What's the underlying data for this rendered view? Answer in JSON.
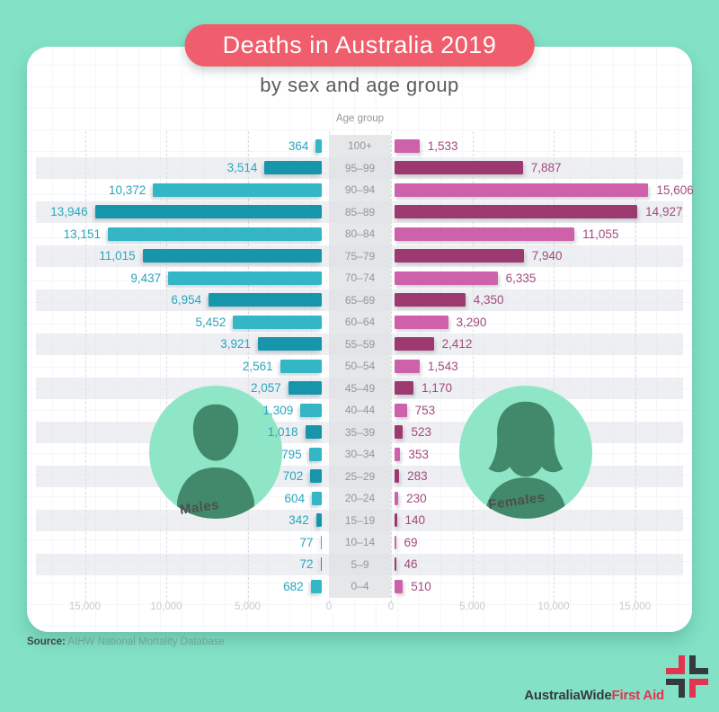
{
  "theme": {
    "mint": "#83E1C6",
    "banner": "#F05D6C",
    "subtitle_text": "#5B5B5B",
    "male_light": "#33B6C5",
    "male_dark": "#1795AA",
    "female_light": "#CD62AA",
    "female_dark": "#9C3A70",
    "male_label": "#2AA6BD",
    "female_label": "#A34B7E",
    "stripe": "rgba(222,225,231,0.55)",
    "band": "#E6E7E9",
    "age_text": "#95969A",
    "tick_text": "#C5CBCF",
    "avatar_bg": "#8EE6C6",
    "avatar_fg": "#41896A",
    "names_text": "#4E4E4E",
    "source_label": "#3D4744",
    "source_text": "#6FA294",
    "logo_dark": "#343B3E",
    "logo_accent": "#E23351"
  },
  "header": {
    "title": "Deaths in Australia 2019",
    "subtitle": "by sex and age group"
  },
  "chart_data": {
    "type": "bar",
    "variant": "population-pyramid",
    "title": "Deaths in Australia 2019",
    "subtitle": "by sex and age group",
    "center_axis_label": "Age group",
    "categories": [
      "100+",
      "95–99",
      "90–94",
      "85–89",
      "80–84",
      "75–79",
      "70–74",
      "65–69",
      "60–64",
      "55–59",
      "50–54",
      "45–49",
      "40–44",
      "35–39",
      "30–34",
      "25–29",
      "20–24",
      "15–19",
      "10–14",
      "5–9",
      "0–4"
    ],
    "series": [
      {
        "name": "Males",
        "side": "left",
        "values": [
          364,
          3514,
          10372,
          13946,
          13151,
          11015,
          9437,
          6954,
          5452,
          3921,
          2561,
          2057,
          1309,
          1018,
          795,
          702,
          604,
          342,
          77,
          72,
          682
        ]
      },
      {
        "name": "Females",
        "side": "right",
        "values": [
          1533,
          7887,
          15606,
          14927,
          11055,
          7940,
          6335,
          4350,
          3290,
          2412,
          1543,
          1170,
          753,
          523,
          353,
          283,
          230,
          140,
          69,
          46,
          510
        ]
      }
    ],
    "x_ticks_left": [
      "15,000",
      "10,000",
      "5,000",
      "0"
    ],
    "x_ticks_right": [
      "0",
      "5,000",
      "10,000",
      "15,000"
    ],
    "x_max": 15000,
    "grid": "dashed-vertical",
    "row_shading": "alternate",
    "legend_position": "in-plot-avatars"
  },
  "annotations": {
    "male_label": "Males",
    "female_label": "Females"
  },
  "footer": {
    "source_prefix": "Source:",
    "source_text": "AIHW National Mortality Database"
  },
  "logo": {
    "part1": "AustraliaWide",
    "part2": "First Aid"
  }
}
